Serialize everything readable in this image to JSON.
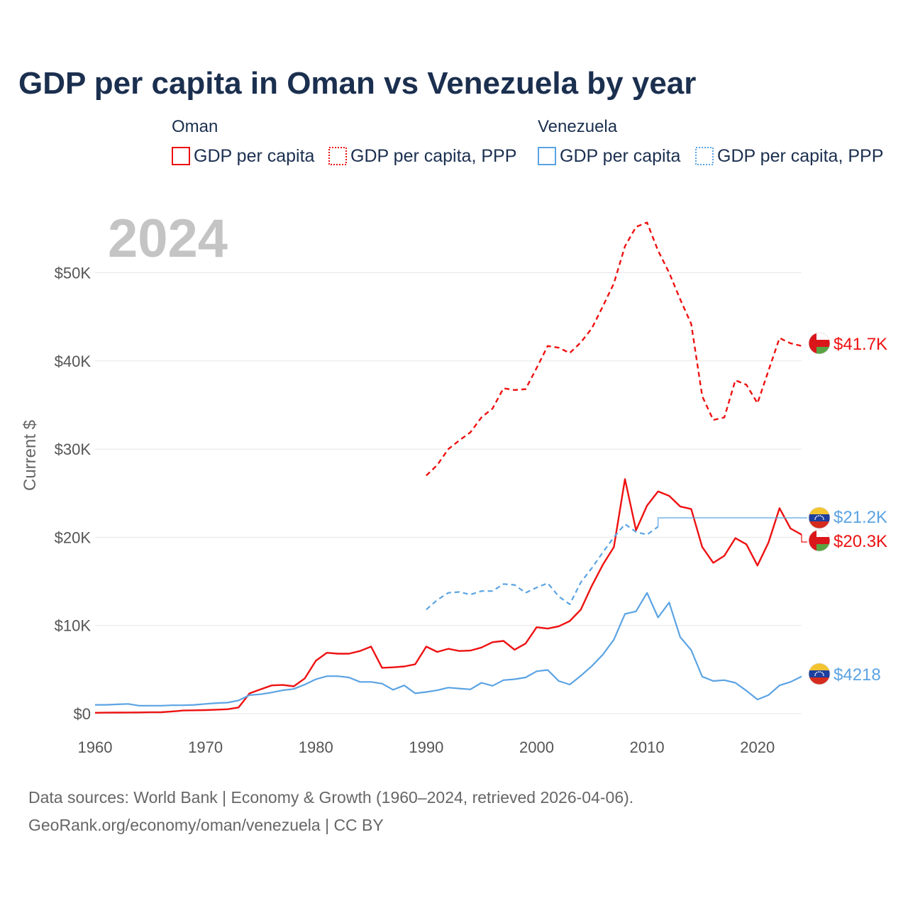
{
  "title": "GDP per capita in Oman vs Venezuela by year",
  "watermark_year": "2024",
  "colors": {
    "oman": "#ee1111",
    "venezuela": "#5ba3e3",
    "text": "#1b2f4f"
  },
  "legend": {
    "groups": [
      {
        "name": "Oman",
        "items": [
          {
            "label": "GDP per capita",
            "style": "solid",
            "color": "#ee1111"
          },
          {
            "label": "GDP per capita, PPP",
            "style": "dotted",
            "color": "#ee1111"
          }
        ]
      },
      {
        "name": "Venezuela",
        "items": [
          {
            "label": "GDP per capita",
            "style": "solid",
            "color": "#5ba3e3"
          },
          {
            "label": "GDP per capita, PPP",
            "style": "dotted",
            "color": "#5ba3e3"
          }
        ]
      }
    ]
  },
  "chart_data": {
    "type": "line",
    "title": "GDP per capita in Oman vs Venezuela by year",
    "xlabel": "",
    "ylabel": "Current $",
    "xlim": [
      1960,
      2024
    ],
    "ylim": [
      0,
      56000
    ],
    "x_ticks": [
      1960,
      1970,
      1980,
      1990,
      2000,
      2010,
      2020
    ],
    "y_ticks": [
      {
        "value": 0,
        "label": "$0"
      },
      {
        "value": 10000,
        "label": "$10K"
      },
      {
        "value": 20000,
        "label": "$20K"
      },
      {
        "value": 30000,
        "label": "$30K"
      },
      {
        "value": 40000,
        "label": "$40K"
      },
      {
        "value": 50000,
        "label": "$50K"
      }
    ],
    "grid": true,
    "series": [
      {
        "name": "Oman GDP per capita",
        "country": "oman",
        "style": "solid",
        "color": "#ee1111",
        "end_label": "$20.3K",
        "flag": "oman",
        "x": [
          1960,
          1961,
          1962,
          1963,
          1964,
          1965,
          1966,
          1967,
          1968,
          1969,
          1970,
          1971,
          1972,
          1973,
          1974,
          1975,
          1976,
          1977,
          1978,
          1979,
          1980,
          1981,
          1982,
          1983,
          1984,
          1985,
          1986,
          1987,
          1988,
          1989,
          1990,
          1991,
          1992,
          1993,
          1994,
          1995,
          1996,
          1997,
          1998,
          1999,
          2000,
          2001,
          2002,
          2003,
          2004,
          2005,
          2006,
          2007,
          2008,
          2009,
          2010,
          2011,
          2012,
          2013,
          2014,
          2015,
          2016,
          2017,
          2018,
          2019,
          2020,
          2021,
          2022,
          2023,
          2024
        ],
        "values": [
          100,
          110,
          120,
          130,
          140,
          150,
          160,
          250,
          350,
          380,
          400,
          450,
          500,
          700,
          2300,
          2750,
          3200,
          3250,
          3100,
          4000,
          6000,
          6900,
          6800,
          6800,
          7100,
          7600,
          5200,
          5250,
          5350,
          5600,
          7600,
          7000,
          7350,
          7100,
          7150,
          7500,
          8100,
          8250,
          7250,
          7950,
          9800,
          9650,
          9900,
          10500,
          11800,
          14500,
          16900,
          18900,
          26600,
          20800,
          23600,
          25200,
          24700,
          23500,
          23200,
          18900,
          17100,
          17900,
          19900,
          19200,
          16800,
          19400,
          23300,
          21000,
          20300
        ]
      },
      {
        "name": "Oman GDP per capita, PPP",
        "country": "oman",
        "style": "dashed",
        "color": "#ee1111",
        "end_label": "$41.7K",
        "flag": "oman",
        "x": [
          1990,
          1991,
          1992,
          1993,
          1994,
          1995,
          1996,
          1997,
          1998,
          1999,
          2000,
          2001,
          2002,
          2003,
          2004,
          2005,
          2006,
          2007,
          2008,
          2009,
          2010,
          2011,
          2012,
          2013,
          2014,
          2015,
          2016,
          2017,
          2018,
          2019,
          2020,
          2021,
          2022,
          2023,
          2024
        ],
        "values": [
          27000,
          28200,
          30000,
          31000,
          31900,
          33600,
          34600,
          36900,
          36700,
          36800,
          39200,
          41700,
          41500,
          40900,
          42100,
          43700,
          46200,
          48800,
          53000,
          55200,
          55700,
          52500,
          50000,
          47000,
          44200,
          36000,
          33300,
          33600,
          37800,
          37300,
          35200,
          38900,
          42600,
          42000,
          41700
        ]
      },
      {
        "name": "Venezuela GDP per capita",
        "country": "venezuela",
        "style": "solid",
        "color": "#5ba3e3",
        "end_label": "$4218",
        "flag": "venezuela",
        "x": [
          1960,
          1961,
          1962,
          1963,
          1964,
          1965,
          1966,
          1967,
          1968,
          1969,
          1970,
          1971,
          1972,
          1973,
          1974,
          1975,
          1976,
          1977,
          1978,
          1979,
          1980,
          1981,
          1982,
          1983,
          1984,
          1985,
          1986,
          1987,
          1988,
          1989,
          1990,
          1991,
          1992,
          1993,
          1994,
          1995,
          1996,
          1997,
          1998,
          1999,
          2000,
          2001,
          2002,
          2003,
          2004,
          2005,
          2006,
          2007,
          2008,
          2009,
          2010,
          2011,
          2012,
          2013,
          2014,
          2015,
          2016,
          2017,
          2018,
          2019,
          2020,
          2021,
          2022,
          2023,
          2024
        ],
        "values": [
          1000,
          1000,
          1050,
          1100,
          900,
          900,
          900,
          950,
          950,
          1000,
          1100,
          1200,
          1250,
          1500,
          2100,
          2200,
          2400,
          2650,
          2800,
          3300,
          3900,
          4250,
          4250,
          4100,
          3600,
          3600,
          3400,
          2700,
          3200,
          2300,
          2450,
          2650,
          2950,
          2850,
          2750,
          3500,
          3150,
          3800,
          3900,
          4100,
          4800,
          4950,
          3700,
          3300,
          4300,
          5400,
          6700,
          8400,
          11300,
          11600,
          13700,
          10900,
          12600,
          8700,
          7200,
          4200,
          3700,
          3800,
          3500,
          2600,
          1600,
          2100,
          3200,
          3600,
          4218
        ]
      },
      {
        "name": "Venezuela GDP per capita, PPP",
        "country": "venezuela",
        "style": "dashed",
        "color": "#5ba3e3",
        "end_label": "$21.2K",
        "flag": "venezuela",
        "x": [
          1990,
          1991,
          1992,
          1993,
          1994,
          1995,
          1996,
          1997,
          1998,
          1999,
          2000,
          2001,
          2002,
          2003,
          2004,
          2005,
          2006,
          2007,
          2008,
          2009,
          2010,
          2011
        ],
        "values": [
          11800,
          12900,
          13700,
          13800,
          13500,
          13900,
          13900,
          14700,
          14600,
          13700,
          14300,
          14800,
          13300,
          12400,
          14900,
          16500,
          18300,
          20000,
          21500,
          20600,
          20300,
          21200
        ]
      }
    ],
    "end_labels": [
      {
        "series": 1,
        "label": "$41.7K",
        "color": "#ee1111",
        "flag": "oman"
      },
      {
        "series": 3,
        "label": "$21.2K",
        "color": "#5ba3e3",
        "flag": "venezuela"
      },
      {
        "series": 0,
        "label": "$20.3K",
        "color": "#ee1111",
        "flag": "oman"
      },
      {
        "series": 2,
        "label": "$4218",
        "color": "#5ba3e3",
        "flag": "venezuela"
      }
    ]
  },
  "source": {
    "line1": "Data sources: World Bank | Economy & Growth (1960–2024, retrieved 2026-04-06).",
    "line2": "GeoRank.org/economy/oman/venezuela | CC BY"
  }
}
